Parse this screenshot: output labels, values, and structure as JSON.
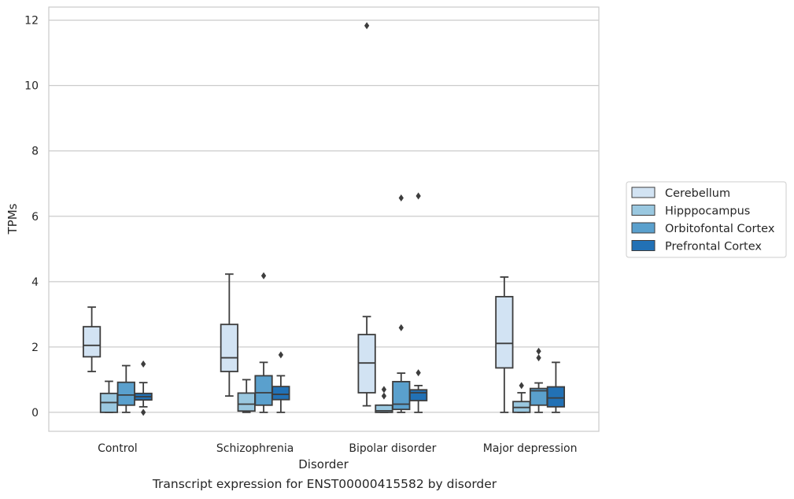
{
  "caption": "Transcript expression for ENST00000415582 by disorder",
  "chart_data": {
    "type": "box",
    "title": "",
    "xlabel": "Disorder",
    "ylabel": "TPMs",
    "ylim": [
      -0.58,
      12.4
    ],
    "yticks": [
      0,
      2,
      4,
      6,
      8,
      10,
      12
    ],
    "grid": true,
    "legend_position": "right",
    "categories": [
      "Control",
      "Schizophrenia",
      "Bipolar disorder",
      "Major depression"
    ],
    "series": [
      {
        "name": "Cerebellum",
        "color": "#d2e3f3",
        "boxes": [
          {
            "whislo": 1.25,
            "q1": 1.7,
            "med": 2.05,
            "q3": 2.62,
            "whishi": 3.22,
            "fliers": []
          },
          {
            "whislo": 0.5,
            "q1": 1.25,
            "med": 1.67,
            "q3": 2.69,
            "whishi": 4.23,
            "fliers": []
          },
          {
            "whislo": 0.2,
            "q1": 0.6,
            "med": 1.51,
            "q3": 2.38,
            "whishi": 2.93,
            "fliers": [
              11.83
            ]
          },
          {
            "whislo": 0.0,
            "q1": 1.36,
            "med": 2.11,
            "q3": 3.54,
            "whishi": 4.14,
            "fliers": []
          }
        ]
      },
      {
        "name": "Hipppocampus",
        "color": "#9ac8e0",
        "boxes": [
          {
            "whislo": 0.0,
            "q1": 0.0,
            "med": 0.3,
            "q3": 0.58,
            "whishi": 0.95,
            "fliers": []
          },
          {
            "whislo": 0.0,
            "q1": 0.04,
            "med": 0.25,
            "q3": 0.59,
            "whishi": 1.0,
            "fliers": []
          },
          {
            "whislo": 0.0,
            "q1": 0.0,
            "med": 0.05,
            "q3": 0.22,
            "whishi": 0.22,
            "fliers": [
              0.5,
              0.7
            ]
          },
          {
            "whislo": 0.0,
            "q1": 0.0,
            "med": 0.15,
            "q3": 0.33,
            "whishi": 0.6,
            "fliers": [
              0.82
            ]
          }
        ]
      },
      {
        "name": "Orbitofontal Cortex",
        "color": "#5aa0cd",
        "boxes": [
          {
            "whislo": 0.0,
            "q1": 0.22,
            "med": 0.53,
            "q3": 0.92,
            "whishi": 1.43,
            "fliers": []
          },
          {
            "whislo": 0.0,
            "q1": 0.22,
            "med": 0.6,
            "q3": 1.12,
            "whishi": 1.53,
            "fliers": [
              4.18
            ]
          },
          {
            "whislo": 0.0,
            "q1": 0.09,
            "med": 0.25,
            "q3": 0.94,
            "whishi": 1.2,
            "fliers": [
              2.59,
              6.56
            ]
          },
          {
            "whislo": 0.0,
            "q1": 0.22,
            "med": 0.66,
            "q3": 0.73,
            "whishi": 0.9,
            "fliers": [
              1.67,
              1.87
            ]
          }
        ]
      },
      {
        "name": "Prefrontal Cortex",
        "color": "#2271b5",
        "boxes": [
          {
            "whislo": 0.17,
            "q1": 0.38,
            "med": 0.48,
            "q3": 0.58,
            "whishi": 0.91,
            "fliers": [
              0.0,
              1.48
            ]
          },
          {
            "whislo": 0.0,
            "q1": 0.39,
            "med": 0.55,
            "q3": 0.79,
            "whishi": 1.12,
            "fliers": [
              1.76
            ]
          },
          {
            "whislo": 0.0,
            "q1": 0.36,
            "med": 0.6,
            "q3": 0.69,
            "whishi": 0.82,
            "fliers": [
              1.21,
              6.62
            ]
          },
          {
            "whislo": 0.0,
            "q1": 0.17,
            "med": 0.44,
            "q3": 0.78,
            "whishi": 1.53,
            "fliers": []
          }
        ]
      }
    ]
  }
}
